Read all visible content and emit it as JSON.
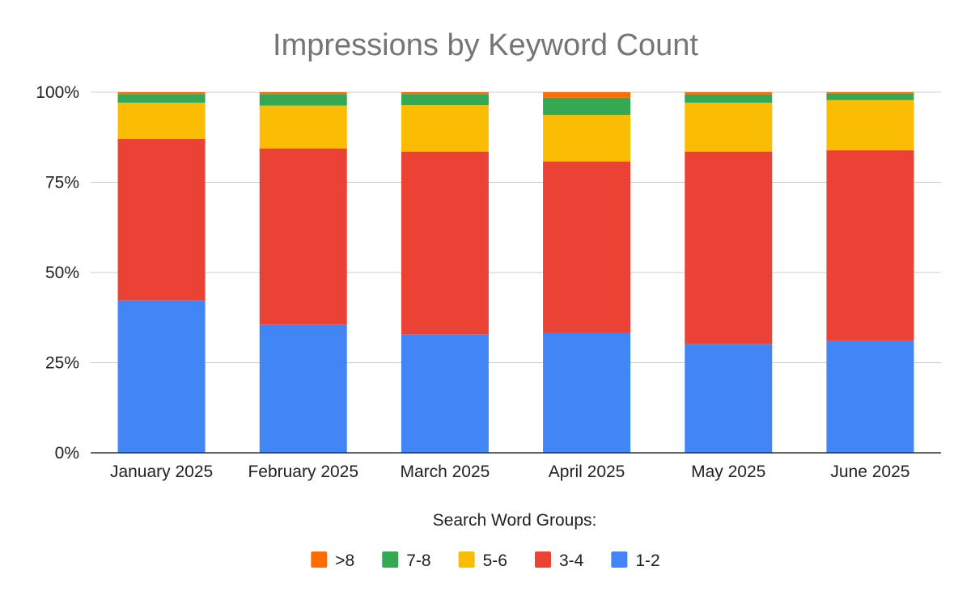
{
  "chart_data": {
    "type": "bar",
    "stacked": "percent",
    "title": "Impressions by Keyword Count",
    "categories": [
      "January 2025",
      "February 2025",
      "March 2025",
      "April 2025",
      "May 2025",
      "June 2025"
    ],
    "y_ticks": [
      "0%",
      "25%",
      "50%",
      "75%",
      "100%"
    ],
    "ylim": [
      0,
      100
    ],
    "grid": true,
    "legend": {
      "title": "Search Word Groups:",
      "position": "bottom"
    },
    "series": [
      {
        "name": "1-2",
        "color": "#4285F4",
        "values": [
          42.2,
          35.6,
          32.9,
          33.3,
          30.2,
          31.0
        ]
      },
      {
        "name": "3-4",
        "color": "#EA4335",
        "values": [
          44.8,
          48.8,
          50.6,
          47.5,
          53.3,
          52.9
        ]
      },
      {
        "name": "5-6",
        "color": "#FBBC04",
        "values": [
          10.1,
          11.9,
          12.9,
          12.9,
          13.6,
          13.9
        ]
      },
      {
        "name": "7-8",
        "color": "#34A853",
        "values": [
          2.4,
          3.2,
          3.1,
          4.8,
          2.3,
          1.9
        ]
      },
      {
        "name": ">8",
        "color": "#FF6D01",
        "values": [
          0.5,
          0.5,
          0.5,
          1.5,
          0.6,
          0.3
        ]
      }
    ],
    "legend_order": [
      ">8",
      "7-8",
      "5-6",
      "3-4",
      "1-2"
    ]
  }
}
